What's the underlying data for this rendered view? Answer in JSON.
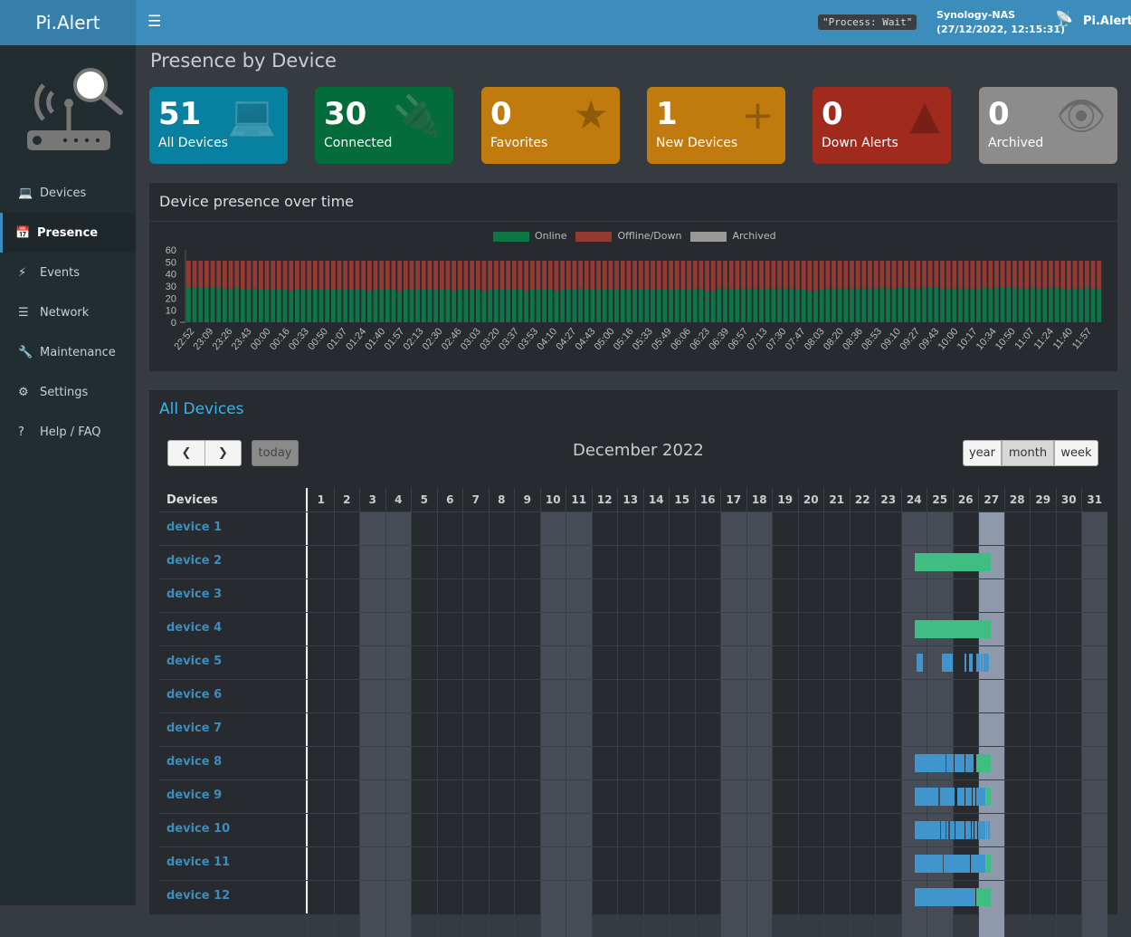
{
  "header": {
    "logo": "Pi.Alert",
    "process": "\"Process: Wait\"",
    "host": "Synology-NAS",
    "datetime": "(27/12/2022, 12:15:31)",
    "brand": "Pi.Alert"
  },
  "sidebar": {
    "items": [
      {
        "label": "Devices",
        "icon": "laptop-icon"
      },
      {
        "label": "Presence",
        "icon": "calendar-icon",
        "active": true
      },
      {
        "label": "Events",
        "icon": "bolt-icon"
      },
      {
        "label": "Network",
        "icon": "server-icon"
      },
      {
        "label": "Maintenance",
        "icon": "wrench-icon"
      },
      {
        "label": "Settings",
        "icon": "gear-icon"
      },
      {
        "label": "Help / FAQ",
        "icon": "question-icon"
      }
    ]
  },
  "page_title": "Presence by Device",
  "cards": [
    {
      "value": "51",
      "label": "All Devices",
      "color": "#08809f",
      "icon": "laptop-icon"
    },
    {
      "value": "30",
      "label": "Connected",
      "color": "#046b3a",
      "icon": "plug-icon"
    },
    {
      "value": "0",
      "label": "Favorites",
      "color": "#c07a0d",
      "icon": "star-icon"
    },
    {
      "value": "1",
      "label": "New Devices",
      "color": "#c07a0d",
      "icon": "plus-icon"
    },
    {
      "value": "0",
      "label": "Down Alerts",
      "color": "#a12a1f",
      "icon": "warning-icon"
    },
    {
      "value": "0",
      "label": "Archived",
      "color": "#8c8c8c",
      "icon": "eye-slash-icon"
    }
  ],
  "chart_title": "Device presence over time",
  "chart_data": {
    "type": "bar",
    "stacked": true,
    "ylim": [
      0,
      60
    ],
    "yticks": [
      0,
      10,
      20,
      30,
      40,
      50,
      60
    ],
    "legend_position": "top",
    "series": [
      {
        "name": "Online",
        "color": "#0e7547"
      },
      {
        "name": "Offline/Down",
        "color": "#943a33"
      },
      {
        "name": "Archived",
        "color": "#999999"
      }
    ],
    "total": 51,
    "xtick_labels": [
      "22:52",
      "23:09",
      "23:26",
      "23:43",
      "00:00",
      "00:16",
      "00:33",
      "00:50",
      "01:07",
      "01:24",
      "01:40",
      "01:57",
      "02:13",
      "02:30",
      "02:46",
      "03:03",
      "03:20",
      "03:37",
      "03:53",
      "04:10",
      "04:27",
      "04:43",
      "05:00",
      "05:16",
      "05:33",
      "05:49",
      "06:06",
      "06:23",
      "06:39",
      "06:57",
      "07:13",
      "07:30",
      "07:47",
      "08:03",
      "08:20",
      "08:36",
      "08:53",
      "09:10",
      "09:27",
      "09:43",
      "10:00",
      "10:17",
      "10:34",
      "10:50",
      "11:07",
      "11:24",
      "11:40",
      "11:57"
    ],
    "online": [
      29,
      29,
      29,
      29,
      29,
      29,
      28,
      28,
      29,
      27,
      27,
      28,
      27,
      27,
      27,
      27,
      27,
      26,
      27,
      27,
      27,
      27,
      27,
      27,
      27,
      27,
      27,
      27,
      27,
      27,
      26,
      27,
      27,
      27,
      27,
      26,
      27,
      27,
      27,
      27,
      27,
      27,
      27,
      27,
      26,
      27,
      27,
      27,
      27,
      26,
      27,
      27,
      27,
      27,
      27,
      27,
      26,
      27,
      27,
      27,
      27,
      26,
      27,
      27,
      27,
      28,
      27,
      27,
      27,
      27,
      27,
      27,
      27,
      27,
      27,
      27,
      27,
      27,
      27,
      27,
      27,
      27,
      27,
      27,
      28,
      28,
      26,
      26,
      28,
      28,
      28,
      27,
      28,
      28,
      28,
      27,
      28,
      28,
      28,
      28,
      28,
      27,
      27,
      26,
      26,
      27,
      28,
      28,
      28,
      28,
      28,
      28,
      28,
      28,
      28,
      29,
      28,
      28,
      29,
      29,
      28,
      28,
      29,
      29,
      29,
      28,
      28,
      28,
      28,
      28,
      28,
      27,
      29,
      28,
      29,
      29,
      29,
      29,
      28,
      28,
      29,
      28,
      28,
      29,
      29,
      28,
      27,
      28,
      28,
      29,
      28,
      28
    ],
    "archived": 0
  },
  "calendar": {
    "section_title": "All Devices",
    "month_title": "December 2022",
    "today_label": "today",
    "views": [
      "year",
      "month",
      "week"
    ],
    "active_view": "month",
    "devices_header": "Devices",
    "days": 31,
    "weekend_days": [
      3,
      4,
      10,
      11,
      17,
      18,
      24,
      25,
      31
    ],
    "today": 27,
    "colors": {
      "online": "#40bd82",
      "session": "#3f95cc",
      "weekend": "#454c55",
      "today": "#8e9aab"
    },
    "devices": [
      {
        "name": "device 1",
        "segments": []
      },
      {
        "name": "device 2",
        "segments": [
          [
            24.54,
            27.49,
            "online"
          ]
        ]
      },
      {
        "name": "device 3",
        "segments": []
      },
      {
        "name": "device 4",
        "segments": [
          [
            24.54,
            27.49,
            "online"
          ]
        ]
      },
      {
        "name": "device 5",
        "segments": [
          [
            24.61,
            24.86,
            "session"
          ],
          [
            25.6,
            26.02,
            "session"
          ],
          [
            26.47,
            26.54,
            "session"
          ],
          [
            26.65,
            26.79,
            "session"
          ],
          [
            26.93,
            27.07,
            "session"
          ],
          [
            27.11,
            27.18,
            "session"
          ],
          [
            27.21,
            27.42,
            "session"
          ]
        ]
      },
      {
        "name": "device 6",
        "segments": []
      },
      {
        "name": "device 7",
        "segments": []
      },
      {
        "name": "device 8",
        "segments": [
          [
            24.54,
            25.74,
            "session"
          ],
          [
            25.77,
            26.05,
            "session"
          ],
          [
            26.09,
            26.47,
            "session"
          ],
          [
            26.51,
            26.82,
            "session"
          ],
          [
            26.93,
            27.49,
            "online"
          ]
        ]
      },
      {
        "name": "device 9",
        "segments": [
          [
            24.54,
            25.46,
            "session"
          ],
          [
            25.53,
            26.09,
            "session"
          ],
          [
            26.19,
            26.47,
            "session"
          ],
          [
            26.51,
            26.75,
            "session"
          ],
          [
            26.79,
            26.89,
            "session"
          ],
          [
            26.93,
            27.28,
            "session"
          ],
          [
            27.32,
            27.49,
            "online"
          ]
        ]
      },
      {
        "name": "device 10",
        "segments": [
          [
            24.54,
            25.53,
            "session"
          ],
          [
            25.56,
            25.74,
            "session"
          ],
          [
            25.77,
            25.84,
            "session"
          ],
          [
            25.91,
            26.09,
            "session"
          ],
          [
            26.12,
            26.47,
            "session"
          ],
          [
            26.51,
            26.72,
            "session"
          ],
          [
            26.75,
            26.82,
            "session"
          ],
          [
            26.86,
            26.96,
            "session"
          ],
          [
            27.0,
            27.28,
            "session"
          ],
          [
            27.32,
            27.35,
            "session"
          ],
          [
            27.39,
            27.46,
            "session"
          ]
        ]
      },
      {
        "name": "device 11",
        "segments": [
          [
            24.54,
            25.63,
            "session"
          ],
          [
            25.67,
            26.68,
            "session"
          ],
          [
            26.72,
            27.28,
            "session"
          ],
          [
            27.32,
            27.49,
            "online"
          ]
        ]
      },
      {
        "name": "device 12",
        "segments": [
          [
            24.54,
            26.89,
            "session"
          ],
          [
            26.93,
            27.49,
            "online"
          ]
        ]
      }
    ]
  }
}
